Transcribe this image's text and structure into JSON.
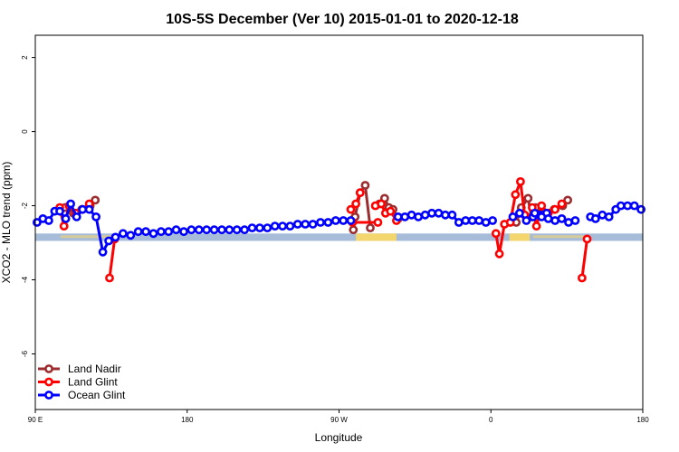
{
  "chart_data": {
    "type": "line",
    "title": "10S-5S December (Ver 10)   2015-01-01 to 2020-12-18",
    "xlabel": "Longitude",
    "ylabel": "XCO2 - MLO trend (ppm)",
    "xlim": [
      90,
      450
    ],
    "ylim": [
      -7.5,
      2.6
    ],
    "x_ticks": [
      {
        "value": 90,
        "label": "90 E"
      },
      {
        "value": 180,
        "label": "180"
      },
      {
        "value": 270,
        "label": "90 W"
      },
      {
        "value": 360,
        "label": "0"
      },
      {
        "value": 450,
        "label": "180"
      }
    ],
    "y_ticks": [
      {
        "value": 2,
        "label": "2"
      },
      {
        "value": 0,
        "label": "0"
      },
      {
        "value": -2,
        "label": "-2"
      },
      {
        "value": -4,
        "label": "-4"
      },
      {
        "value": -6,
        "label": "-6"
      }
    ],
    "legend_position": "bottom-left",
    "series": [
      {
        "name": "Land Nadir",
        "color": "#9b2d30",
        "segments": [
          [
            [
              107.5,
              -2.05
            ],
            [
              112.5,
              -2.2
            ],
            [
              117.5,
              -2.1
            ],
            [
              122.5,
              -2.0
            ],
            [
              125.5,
              -1.85
            ]
          ],
          [
            [
              278.5,
              -2.65
            ],
            [
              279.5,
              -2.3
            ],
            [
              282.5,
              -1.65
            ],
            [
              285.5,
              -1.45
            ],
            [
              288.5,
              -2.6
            ]
          ],
          [
            [
              294,
              -1.95
            ],
            [
              297,
              -1.8
            ],
            [
              299.5,
              -2.05
            ],
            [
              302,
              -2.1
            ],
            [
              305,
              -2.35
            ]
          ],
          [
            [
              375,
              -2.45
            ],
            [
              378,
              -2.05
            ],
            [
              382,
              -1.8
            ],
            [
              384,
              -2.3
            ]
          ],
          [
            [
              386.5,
              -2.05
            ],
            [
              392.5,
              -2.2
            ],
            [
              397.5,
              -2.1
            ],
            [
              402.5,
              -2.0
            ],
            [
              405.5,
              -1.85
            ]
          ]
        ]
      },
      {
        "name": "Land Glint",
        "color": "#ff0000",
        "segments": [
          [
            [
              104.5,
              -2.05
            ],
            [
              107,
              -2.55
            ],
            [
              110,
              -2.0
            ],
            [
              114,
              -2.2
            ],
            [
              118,
              -2.1
            ],
            [
              122,
              -1.95
            ]
          ],
          [
            [
              134,
              -3.95
            ],
            [
              137,
              -2.9
            ]
          ],
          [
            [
              277,
              -2.1
            ],
            [
              280,
              -1.95
            ],
            [
              282.5,
              -1.65
            ]
          ],
          [
            [
              291.5,
              -2.0
            ],
            [
              295,
              -1.95
            ],
            [
              297.5,
              -2.2
            ],
            [
              300.5,
              -2.15
            ],
            [
              304,
              -2.4
            ]
          ],
          [
            [
              278,
              -2.45
            ],
            [
              293,
              -2.45
            ]
          ],
          [
            [
              363,
              -2.75
            ],
            [
              365,
              -3.3
            ],
            [
              368,
              -2.5
            ]
          ],
          [
            [
              371.5,
              -2.45
            ],
            [
              374.5,
              -1.7
            ],
            [
              377.5,
              -1.35
            ],
            [
              380,
              -2.25
            ]
          ],
          [
            [
              384.5,
              -2.05
            ],
            [
              387,
              -2.55
            ],
            [
              390,
              -2.0
            ],
            [
              394,
              -2.2
            ],
            [
              398,
              -2.1
            ],
            [
              402,
              -1.95
            ]
          ],
          [
            [
              414,
              -3.95
            ],
            [
              417,
              -2.9
            ]
          ]
        ]
      },
      {
        "name": "Ocean Glint",
        "color": "#0000ff",
        "segments": [
          [
            [
              91,
              -2.45
            ],
            [
              94.5,
              -2.35
            ],
            [
              98,
              -2.4
            ],
            [
              101.5,
              -2.15
            ],
            [
              104.5,
              -2.15
            ],
            [
              108,
              -2.35
            ],
            [
              111,
              -1.95
            ],
            [
              114.5,
              -2.3
            ],
            [
              118,
              -2.1
            ],
            [
              122,
              -2.1
            ],
            [
              126,
              -2.3
            ],
            [
              130,
              -3.25
            ],
            [
              133.5,
              -2.95
            ],
            [
              137.5,
              -2.85
            ],
            [
              142,
              -2.75
            ],
            [
              146.5,
              -2.8
            ],
            [
              151,
              -2.7
            ],
            [
              155.5,
              -2.7
            ],
            [
              160,
              -2.75
            ],
            [
              164.5,
              -2.7
            ],
            [
              169,
              -2.7
            ],
            [
              173.5,
              -2.65
            ],
            [
              178,
              -2.7
            ],
            [
              182.5,
              -2.65
            ],
            [
              187,
              -2.65
            ],
            [
              191.5,
              -2.65
            ],
            [
              196,
              -2.65
            ],
            [
              200.5,
              -2.65
            ],
            [
              205,
              -2.65
            ],
            [
              209.5,
              -2.65
            ],
            [
              214,
              -2.65
            ],
            [
              218.5,
              -2.6
            ],
            [
              223,
              -2.6
            ],
            [
              227.5,
              -2.6
            ],
            [
              232,
              -2.55
            ],
            [
              236.5,
              -2.55
            ],
            [
              241,
              -2.55
            ],
            [
              245.5,
              -2.5
            ],
            [
              250,
              -2.5
            ],
            [
              254.5,
              -2.5
            ],
            [
              259,
              -2.45
            ],
            [
              263.5,
              -2.45
            ],
            [
              268,
              -2.4
            ],
            [
              272.5,
              -2.4
            ],
            [
              277,
              -2.4
            ]
          ],
          [
            [
              305,
              -2.3
            ],
            [
              309,
              -2.3
            ],
            [
              313,
              -2.25
            ],
            [
              317,
              -2.3
            ],
            [
              321,
              -2.25
            ],
            [
              325,
              -2.2
            ],
            [
              329,
              -2.2
            ],
            [
              333,
              -2.25
            ],
            [
              337,
              -2.25
            ],
            [
              341,
              -2.45
            ],
            [
              345,
              -2.4
            ],
            [
              349,
              -2.4
            ],
            [
              353,
              -2.4
            ],
            [
              357,
              -2.45
            ],
            [
              361,
              -2.4
            ]
          ],
          [
            [
              373,
              -2.3
            ],
            [
              377,
              -2.2
            ],
            [
              381,
              -2.4
            ],
            [
              385,
              -2.3
            ],
            [
              389,
              -2.25
            ],
            [
              393,
              -2.2
            ]
          ],
          [
            [
              386,
              -2.2
            ],
            [
              390,
              -2.3
            ],
            [
              394,
              -2.35
            ],
            [
              398,
              -2.4
            ],
            [
              402,
              -2.35
            ],
            [
              406,
              -2.45
            ],
            [
              410,
              -2.4
            ]
          ],
          [
            [
              419,
              -2.3
            ],
            [
              422,
              -2.35
            ],
            [
              426,
              -2.25
            ],
            [
              430,
              -2.3
            ],
            [
              434,
              -2.1
            ],
            [
              437,
              -2.0
            ],
            [
              441,
              -2.0
            ],
            [
              445,
              -2.0
            ],
            [
              449,
              -2.1
            ]
          ]
        ]
      }
    ]
  }
}
